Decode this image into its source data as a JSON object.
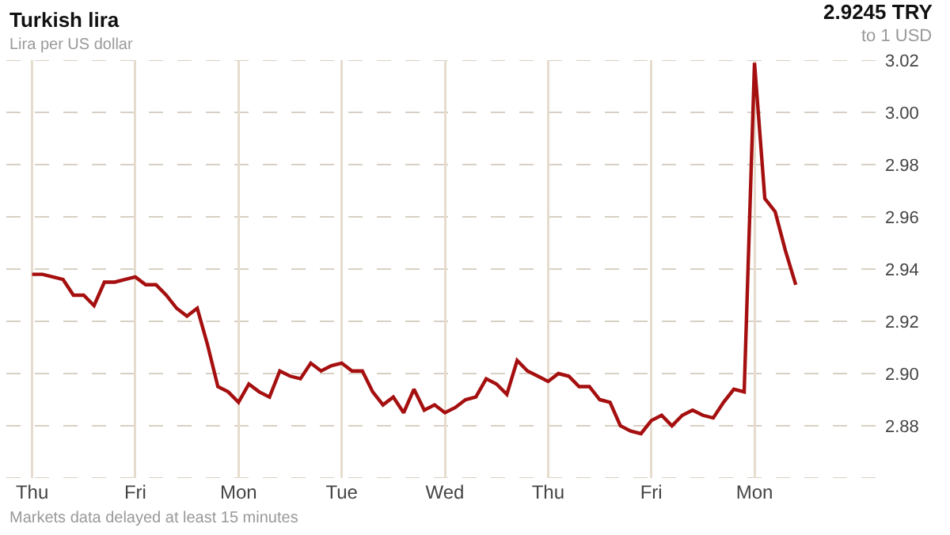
{
  "chart_data": {
    "type": "line",
    "title": "Turkish lira",
    "subtitle": "Lira per US dollar",
    "annotations": [
      "2.9245 TRY",
      "to 1 USD",
      "Markets data delayed at least 15 minutes"
    ],
    "categories": [
      "Thu",
      null,
      null,
      null,
      null,
      null,
      null,
      null,
      null,
      null,
      "Fri",
      null,
      null,
      null,
      null,
      null,
      null,
      null,
      null,
      null,
      "Mon",
      null,
      null,
      null,
      null,
      null,
      null,
      null,
      null,
      null,
      "Tue",
      null,
      null,
      null,
      null,
      null,
      null,
      null,
      null,
      null,
      "Wed",
      null,
      null,
      null,
      null,
      null,
      null,
      null,
      null,
      null,
      "Thu",
      null,
      null,
      null,
      null,
      null,
      null,
      null,
      null,
      null,
      "Fri",
      null,
      null,
      null,
      null,
      null,
      null,
      null,
      null,
      null,
      "Mon",
      null,
      null,
      null,
      null,
      null,
      null,
      null,
      null,
      null,
      null,
      null,
      null
    ],
    "series": [
      {
        "color": "#a50f0f",
        "values": [
          2.938,
          2.938,
          2.937,
          2.936,
          2.93,
          2.93,
          2.926,
          2.935,
          2.935,
          2.936,
          2.937,
          2.934,
          2.934,
          2.93,
          2.925,
          2.922,
          2.925,
          2.911,
          2.895,
          2.893,
          2.889,
          2.896,
          2.893,
          2.891,
          2.901,
          2.899,
          2.898,
          2.904,
          2.901,
          2.903,
          2.904,
          2.901,
          2.901,
          2.893,
          2.888,
          2.891,
          2.885,
          2.894,
          2.886,
          2.888,
          2.885,
          2.887,
          2.89,
          2.891,
          2.898,
          2.896,
          2.892,
          2.905,
          2.901,
          2.899,
          2.897,
          2.9,
          2.899,
          2.895,
          2.895,
          2.89,
          2.889,
          2.88,
          2.878,
          2.877,
          2.882,
          2.884,
          2.88,
          2.884,
          2.886,
          2.884,
          2.883,
          2.889,
          2.894,
          2.893,
          3.019,
          2.967,
          2.962,
          2.947,
          2.934,
          null,
          null,
          null,
          null,
          null,
          null,
          null,
          null
        ]
      }
    ],
    "ylim": [
      2.86,
      3.02
    ],
    "yticks": [
      {
        "value": 2.86,
        "label": null
      },
      {
        "value": 2.88,
        "label": "2.88"
      },
      {
        "value": 2.9,
        "label": "2.90"
      },
      {
        "value": 2.92,
        "label": "2.92"
      },
      {
        "value": 2.94,
        "label": "2.94"
      },
      {
        "value": 2.96,
        "label": "2.96"
      },
      {
        "value": 2.98,
        "label": "2.98"
      },
      {
        "value": 3.0,
        "label": "3.00"
      },
      {
        "value": 3.02,
        "label": "3.02"
      }
    ],
    "grid": true,
    "marker": "none",
    "line_style": "solid"
  }
}
